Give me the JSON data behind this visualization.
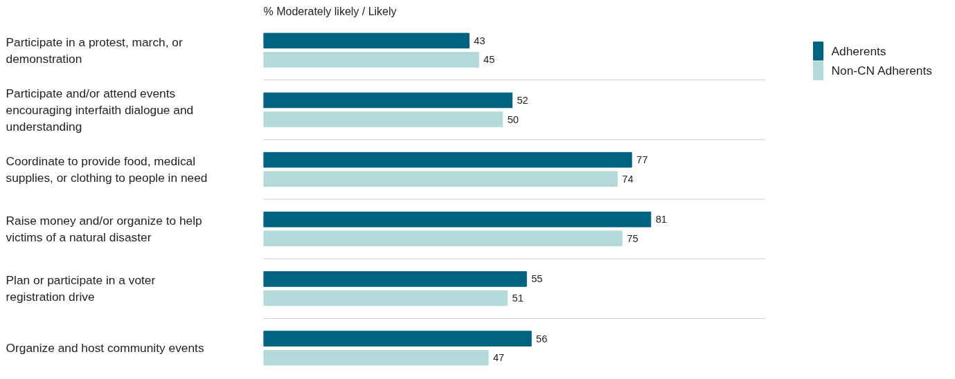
{
  "chart_data": {
    "type": "bar",
    "orientation": "horizontal",
    "title": "% Moderately likely / Likely",
    "categories": [
      "Participate in a protest, march, or demonstration",
      "Participate and/or attend events encouraging interfaith dialogue and understanding",
      "Coordinate to provide food, medical supplies, or clothing to people in need",
      "Raise money and/or organize to help victims of a natural disaster",
      "Plan or participate in a voter registration drive",
      "Organize and host community events"
    ],
    "series": [
      {
        "name": "Adherents",
        "color": "#00637f",
        "values": [
          43,
          52,
          77,
          81,
          55,
          56
        ]
      },
      {
        "name": "Non-CN Adherents",
        "color": "#b3d9d8",
        "values": [
          45,
          50,
          74,
          75,
          51,
          47
        ]
      }
    ],
    "xlim": [
      0,
      105
    ],
    "data_labels": true,
    "legend": "top right",
    "grid": false
  }
}
